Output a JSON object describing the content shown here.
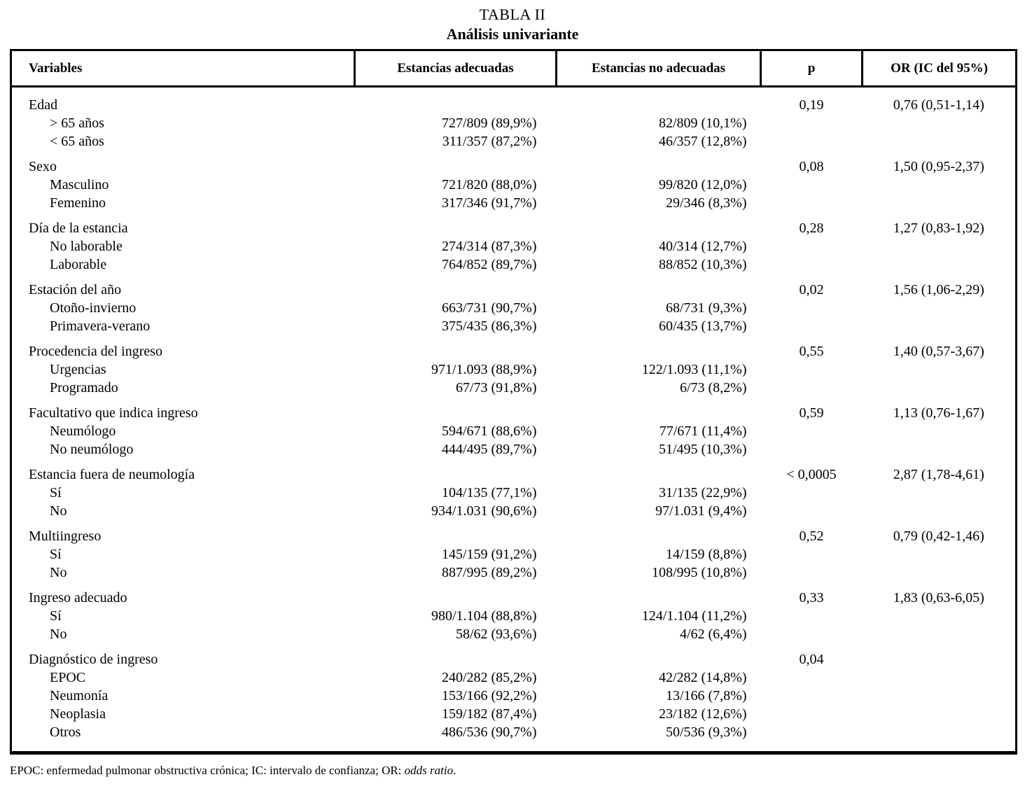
{
  "title": "TABLA II",
  "subtitle": "Análisis univariante",
  "columns": [
    "Variables",
    "Estancias adecuadas",
    "Estancias no adecuadas",
    "p",
    "OR (IC del 95%)"
  ],
  "sections": [
    {
      "variable": "Edad",
      "p": "0,19",
      "or": "0,76 (0,51-1,14)",
      "rows": [
        {
          "label": "> 65 años",
          "adequate": "727/809 (89,9%)",
          "not_adequate": "82/809 (10,1%)"
        },
        {
          "label": "< 65 años",
          "adequate": "311/357 (87,2%)",
          "not_adequate": "46/357 (12,8%)"
        }
      ]
    },
    {
      "variable": "Sexo",
      "p": "0,08",
      "or": "1,50 (0,95-2,37)",
      "rows": [
        {
          "label": "Masculino",
          "adequate": "721/820 (88,0%)",
          "not_adequate": "99/820 (12,0%)"
        },
        {
          "label": "Femenino",
          "adequate": "317/346 (91,7%)",
          "not_adequate": "29/346 (8,3%)"
        }
      ]
    },
    {
      "variable": "Día de la estancia",
      "p": "0,28",
      "or": "1,27 (0,83-1,92)",
      "rows": [
        {
          "label": "No laborable",
          "adequate": "274/314 (87,3%)",
          "not_adequate": "40/314 (12,7%)"
        },
        {
          "label": "Laborable",
          "adequate": "764/852 (89,7%)",
          "not_adequate": "88/852 (10,3%)"
        }
      ]
    },
    {
      "variable": "Estación del año",
      "p": "0,02",
      "or": "1,56 (1,06-2,29)",
      "rows": [
        {
          "label": "Otoño-invierno",
          "adequate": "663/731 (90,7%)",
          "not_adequate": "68/731 (9,3%)"
        },
        {
          "label": "Primavera-verano",
          "adequate": "375/435 (86,3%)",
          "not_adequate": "60/435 (13,7%)"
        }
      ]
    },
    {
      "variable": "Procedencia del ingreso",
      "p": "0,55",
      "or": "1,40 (0,57-3,67)",
      "rows": [
        {
          "label": "Urgencias",
          "adequate": "971/1.093 (88,9%)",
          "not_adequate": "122/1.093 (11,1%)"
        },
        {
          "label": "Programado",
          "adequate": "67/73 (91,8%)",
          "not_adequate": "6/73 (8,2%)"
        }
      ]
    },
    {
      "variable": "Facultativo que indica ingreso",
      "p": "0,59",
      "or": "1,13 (0,76-1,67)",
      "rows": [
        {
          "label": "Neumólogo",
          "adequate": "594/671 (88,6%)",
          "not_adequate": "77/671 (11,4%)"
        },
        {
          "label": "No neumólogo",
          "adequate": "444/495 (89,7%)",
          "not_adequate": "51/495 (10,3%)"
        }
      ]
    },
    {
      "variable": "Estancia fuera de neumología",
      "p": "< 0,0005",
      "or": "2,87 (1,78-4,61)",
      "rows": [
        {
          "label": "Sí",
          "adequate": "104/135 (77,1%)",
          "not_adequate": "31/135 (22,9%)"
        },
        {
          "label": "No",
          "adequate": "934/1.031 (90,6%)",
          "not_adequate": "97/1.031 (9,4%)"
        }
      ]
    },
    {
      "variable": "Multiingreso",
      "p": "0,52",
      "or": "0,79 (0,42-1,46)",
      "rows": [
        {
          "label": "Sí",
          "adequate": "145/159 (91,2%)",
          "not_adequate": "14/159 (8,8%)"
        },
        {
          "label": "No",
          "adequate": "887/995 (89,2%)",
          "not_adequate": "108/995 (10,8%)"
        }
      ]
    },
    {
      "variable": "Ingreso adecuado",
      "p": "0,33",
      "or": "1,83 (0,63-6,05)",
      "rows": [
        {
          "label": "Sí",
          "adequate": "980/1.104 (88,8%)",
          "not_adequate": "124/1.104 (11,2%)"
        },
        {
          "label": "No",
          "adequate": "58/62 (93,6%)",
          "not_adequate": "4/62 (6,4%)"
        }
      ]
    },
    {
      "variable": "Diagnóstico de ingreso",
      "p": "0,04",
      "or": "",
      "rows": [
        {
          "label": "EPOC",
          "adequate": "240/282 (85,2%)",
          "not_adequate": "42/282 (14,8%)"
        },
        {
          "label": "Neumonía",
          "adequate": "153/166 (92,2%)",
          "not_adequate": "13/166 (7,8%)"
        },
        {
          "label": "Neoplasia",
          "adequate": "159/182 (87,4%)",
          "not_adequate": "23/182 (12,6%)"
        },
        {
          "label": "Otros",
          "adequate": "486/536 (90,7%)",
          "not_adequate": "50/536 (9,3%)"
        }
      ]
    }
  ],
  "footnote": {
    "prefix": "EPOC: enfermedad pulmonar obstructiva crónica; IC: intervalo de confianza; OR: ",
    "italic": "odds ratio",
    "suffix": "."
  }
}
